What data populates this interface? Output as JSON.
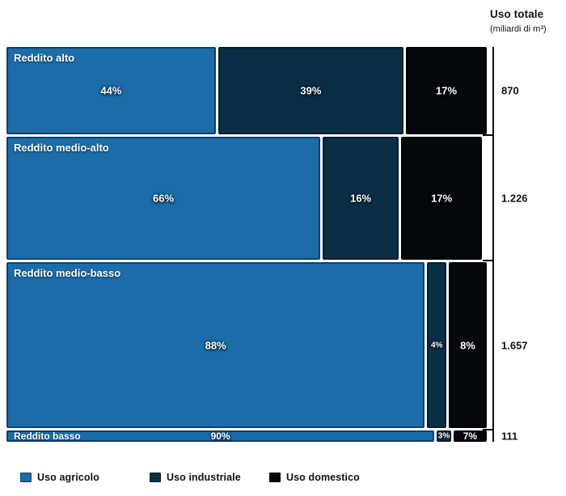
{
  "header": {
    "title": "Uso totale",
    "subtitle": "(miliardi di m³)"
  },
  "chart_data": {
    "type": "mosaic",
    "orientation": "horizontal-rows",
    "title": "",
    "right_axis_title": "Uso totale (miliardi di m³)",
    "value_suffix": "%",
    "grid": false,
    "legend_position": "bottom",
    "series": [
      {
        "name": "Uso agricolo",
        "color": "#1b6ca8",
        "border_color": "#10406f"
      },
      {
        "name": "Uso industriale",
        "color": "#0a2f45",
        "border_color": "#051e2e"
      },
      {
        "name": "Uso domestico",
        "color": "#04080c",
        "border_color": "#000204"
      }
    ],
    "rows": [
      {
        "label": "Reddito alto",
        "total": 870,
        "total_label": "870",
        "values": [
          44,
          39,
          17
        ]
      },
      {
        "label": "Reddito medio-alto",
        "total": 1226,
        "total_label": "1.226",
        "values": [
          66,
          16,
          17
        ]
      },
      {
        "label": "Reddito medio-basso",
        "total": 1657,
        "total_label": "1.657",
        "values": [
          88,
          4,
          8
        ]
      },
      {
        "label": "Reddito basso",
        "total": 111,
        "total_label": "111",
        "values": [
          90,
          3,
          7
        ]
      }
    ]
  }
}
